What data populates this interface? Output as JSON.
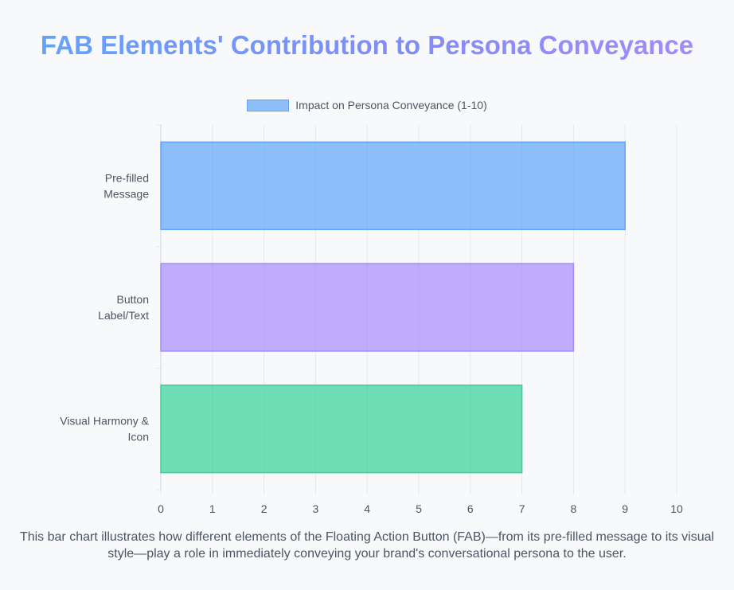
{
  "title": "FAB Elements' Contribution to Persona Conveyance",
  "caption": "This bar chart illustrates how different elements of the Floating Action Button (FAB)—from its pre-filled message to its visual style—play a role in immediately conveying your brand's conversational persona to the user.",
  "colors": {
    "title_start": "#60a5fa",
    "title_end": "#a78bfa",
    "text": "#4b5563",
    "grid": "#e5e7eb"
  },
  "chart_data": {
    "type": "bar",
    "orientation": "horizontal",
    "categories": [
      [
        "Pre-filled",
        "Message"
      ],
      [
        "Button",
        "Label/Text"
      ],
      [
        "Visual Harmony &",
        "Icon"
      ]
    ],
    "series": [
      {
        "name": "Impact on Persona Conveyance (1-10)",
        "values": [
          9,
          8,
          7
        ],
        "colors": [
          "#60a5fa",
          "#a78bfa",
          "#34d399"
        ]
      }
    ],
    "xlim": [
      0,
      10
    ],
    "xticks": [
      0,
      1,
      2,
      3,
      4,
      5,
      6,
      7,
      8,
      9,
      10
    ],
    "grid": true,
    "legend_position": "top"
  }
}
